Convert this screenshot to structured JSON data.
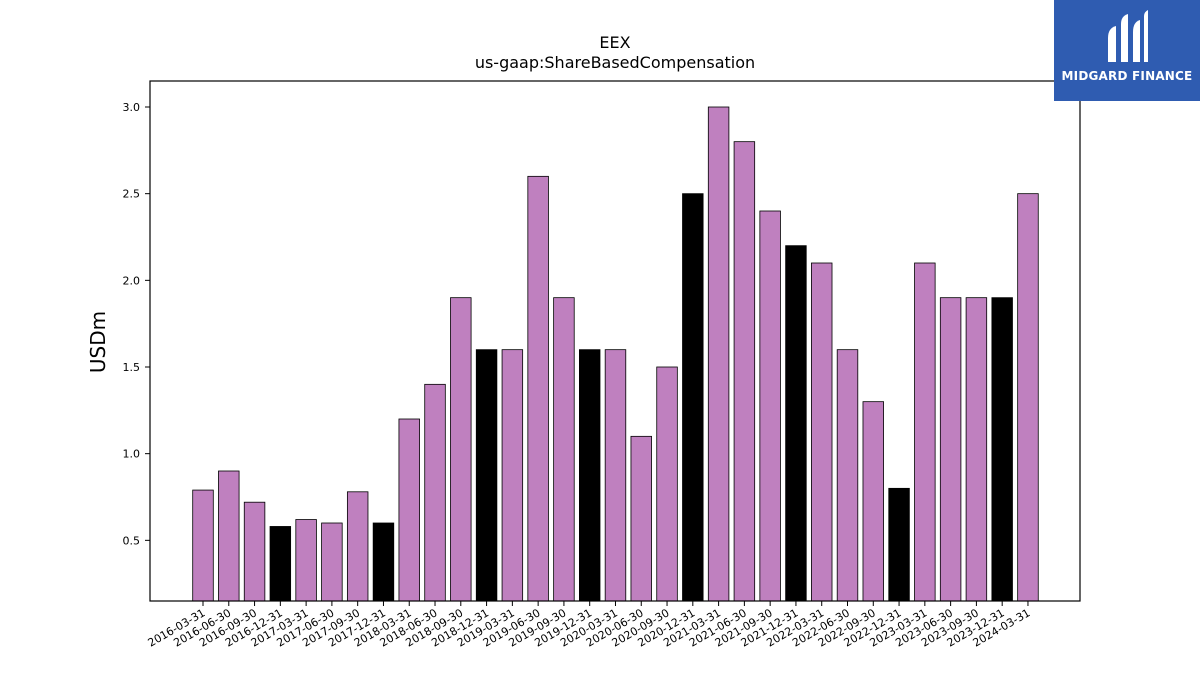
{
  "chart_data": {
    "type": "bar",
    "title": "EEX",
    "subtitle": "us-gaap:ShareBasedCompensation",
    "xlabel": "",
    "ylabel": "USDm",
    "ylim": [
      0.15,
      3.15
    ],
    "yticks": [
      "0.5",
      "1.0",
      "1.5",
      "2.0",
      "2.5",
      "3.0"
    ],
    "grid": false,
    "colors": {
      "quarter": "#bf80bf",
      "year_end": "#000000",
      "edge": "#000000"
    },
    "categories": [
      "2016-03-31",
      "2016-06-30",
      "2016-09-30",
      "2016-12-31",
      "2017-03-31",
      "2017-06-30",
      "2017-09-30",
      "2017-12-31",
      "2018-03-31",
      "2018-06-30",
      "2018-09-30",
      "2018-12-31",
      "2019-03-31",
      "2019-06-30",
      "2019-09-30",
      "2019-12-31",
      "2020-03-31",
      "2020-06-30",
      "2020-09-30",
      "2020-12-31",
      "2021-03-31",
      "2021-06-30",
      "2021-09-30",
      "2021-12-31",
      "2022-03-31",
      "2022-06-30",
      "2022-09-30",
      "2022-12-31",
      "2023-03-31",
      "2023-06-30",
      "2023-09-30",
      "2023-12-31",
      "2024-03-31"
    ],
    "values": [
      0.79,
      0.9,
      0.72,
      0.58,
      0.62,
      0.6,
      0.78,
      0.6,
      1.2,
      1.4,
      1.9,
      1.6,
      1.6,
      2.6,
      1.9,
      1.6,
      1.6,
      1.1,
      1.5,
      2.5,
      3.0,
      2.8,
      2.4,
      2.2,
      2.1,
      1.6,
      1.3,
      0.8,
      2.1,
      1.9,
      1.9,
      1.9,
      2.5
    ]
  },
  "logo": {
    "text": "MIDGARD FINANCE",
    "icon": "midgard-logo-icon",
    "background": "#2f5cb1"
  }
}
